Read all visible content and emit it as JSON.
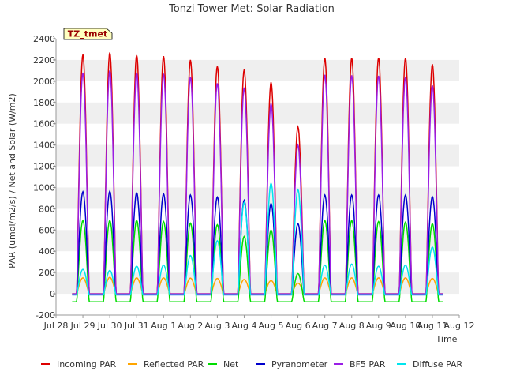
{
  "chart_data": {
    "type": "line",
    "title": "Tonzi Tower Met: Solar Radiation",
    "xlabel": "Time",
    "ylabel": "PAR (umol/m2/s) / Net and Solar (W/m2)",
    "site_tag": "TZ_tmet",
    "ylim": [
      -200,
      2400
    ],
    "yticks": [
      -200,
      0,
      200,
      400,
      600,
      800,
      1000,
      1200,
      1400,
      1600,
      1800,
      2000,
      2200,
      2400
    ],
    "xlim": [
      0,
      15
    ],
    "xticks": [
      {
        "pos": 0,
        "label": "Jul 28"
      },
      {
        "pos": 1,
        "label": "Jul 29"
      },
      {
        "pos": 2,
        "label": "Jul 30"
      },
      {
        "pos": 3,
        "label": "Jul 31"
      },
      {
        "pos": 4,
        "label": "Aug 1"
      },
      {
        "pos": 5,
        "label": "Aug 2"
      },
      {
        "pos": 6,
        "label": "Aug 3"
      },
      {
        "pos": 7,
        "label": "Aug 4"
      },
      {
        "pos": 8,
        "label": "Aug 5"
      },
      {
        "pos": 9,
        "label": "Aug 6"
      },
      {
        "pos": 10,
        "label": "Aug 7"
      },
      {
        "pos": 11,
        "label": "Aug 8"
      },
      {
        "pos": 12,
        "label": "Aug 9"
      },
      {
        "pos": 13,
        "label": "Aug 10"
      },
      {
        "pos": 14,
        "label": "Aug 11"
      },
      {
        "pos": 15,
        "label": "Aug 12"
      }
    ],
    "grid": "horizontal bands",
    "legend_position": "bottom",
    "data_range": [
      0.6,
      14.4
    ],
    "series": [
      {
        "name": "Incoming PAR",
        "color": "#dd0000",
        "night": 0,
        "peaks": [
          2250,
          2270,
          2245,
          2235,
          2200,
          2140,
          2110,
          1990,
          1570,
          2220,
          2220,
          2220,
          2220,
          2160
        ]
      },
      {
        "name": "Reflected PAR",
        "color": "#ffa500",
        "night": 0,
        "peaks": [
          150,
          155,
          150,
          150,
          148,
          145,
          135,
          125,
          100,
          150,
          150,
          150,
          150,
          145
        ]
      },
      {
        "name": "Net",
        "color": "#00dd00",
        "night": -75,
        "peaks": [
          690,
          690,
          690,
          680,
          665,
          650,
          540,
          600,
          190,
          690,
          690,
          680,
          675,
          660
        ]
      },
      {
        "name": "Pyranometer",
        "color": "#0000cc",
        "night": -10,
        "peaks": [
          960,
          965,
          950,
          940,
          930,
          910,
          880,
          850,
          660,
          930,
          930,
          930,
          930,
          915
        ]
      },
      {
        "name": "BF5 PAR",
        "color": "#9a1ee6",
        "night": 0,
        "peaks": [
          2080,
          2100,
          2080,
          2070,
          2040,
          1980,
          1940,
          1790,
          1400,
          2060,
          2055,
          2050,
          2040,
          1960
        ]
      },
      {
        "name": "Diffuse PAR",
        "color": "#00e5ee",
        "night": -10,
        "peaks": [
          230,
          220,
          260,
          270,
          360,
          500,
          860,
          1040,
          980,
          270,
          280,
          260,
          270,
          440
        ]
      }
    ]
  }
}
